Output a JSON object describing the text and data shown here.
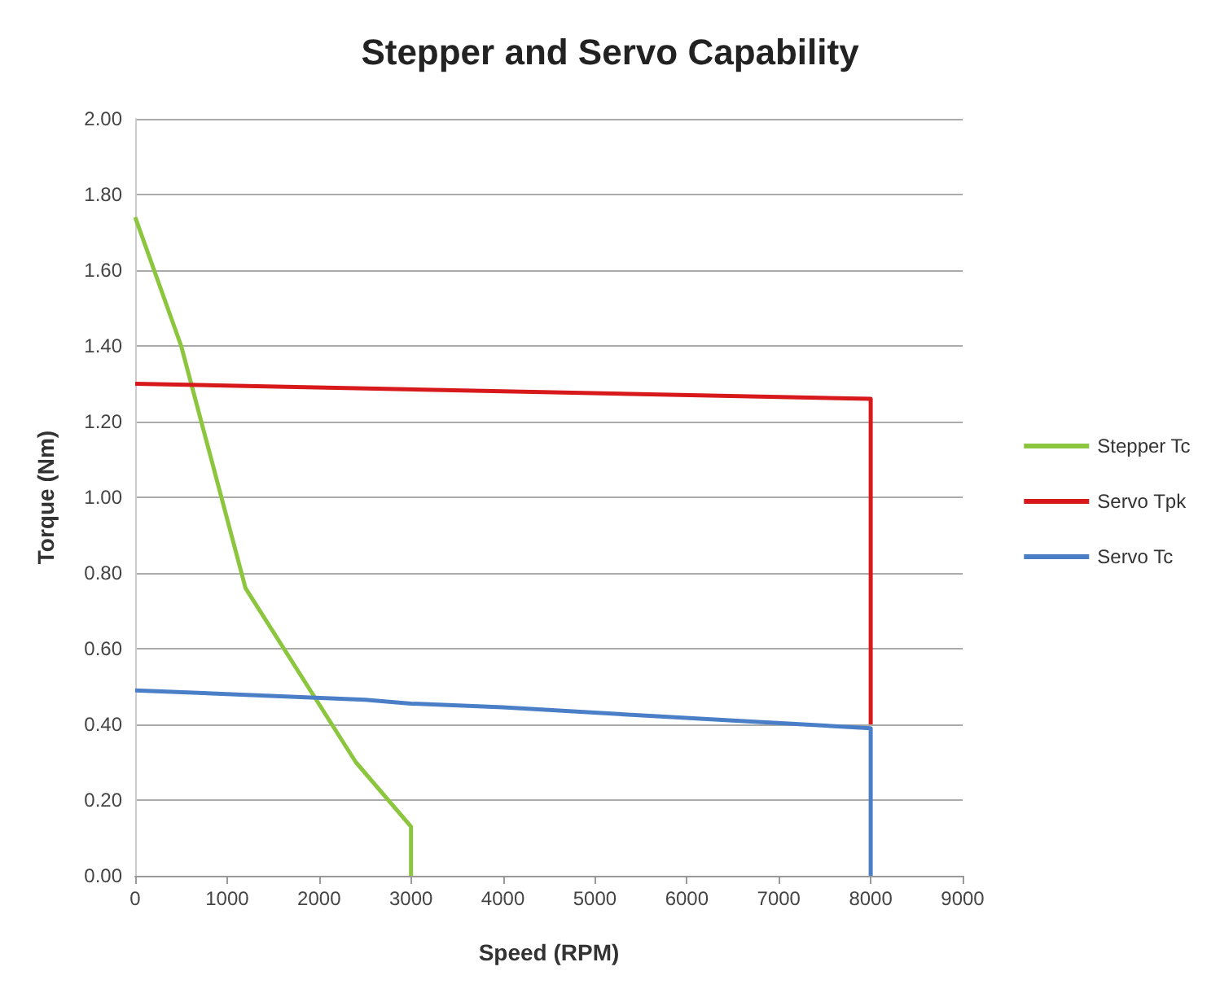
{
  "chart_data": {
    "type": "line",
    "title": "Stepper and Servo Capability",
    "xlabel": "Speed (RPM)",
    "ylabel": "Torque (Nm)",
    "xlim": [
      0,
      9000
    ],
    "xticks": [
      0,
      1000,
      2000,
      3000,
      4000,
      5000,
      6000,
      7000,
      8000,
      9000
    ],
    "ylim": [
      0,
      2
    ],
    "yticks": [
      {
        "value": 0,
        "label": "0.00"
      },
      {
        "value": 0.2,
        "label": "0.20"
      },
      {
        "value": 0.4,
        "label": "0.40"
      },
      {
        "value": 0.6,
        "label": "0.60"
      },
      {
        "value": 0.8,
        "label": "0.80"
      },
      {
        "value": 1,
        "label": "1.00"
      },
      {
        "value": 1.2,
        "label": "1.20"
      },
      {
        "value": 1.4,
        "label": "1.40"
      },
      {
        "value": 1.6,
        "label": "1.60"
      },
      {
        "value": 1.8,
        "label": "1.80"
      },
      {
        "value": 2,
        "label": "2.00"
      }
    ],
    "series": [
      {
        "name": "Stepper Tc",
        "color": "#8cc63f",
        "x": [
          0,
          500,
          1200,
          2400,
          3000,
          3000
        ],
        "values": [
          1.74,
          1.4,
          0.76,
          0.3,
          0.13,
          0
        ]
      },
      {
        "name": "Servo Tpk",
        "color": "#d7191c",
        "x": [
          0,
          8000,
          8000
        ],
        "values": [
          1.3,
          1.26,
          0.4
        ]
      },
      {
        "name": "Servo Tc",
        "color": "#4a7fc8",
        "x": [
          0,
          2500,
          3000,
          4000,
          6500,
          8000,
          8000
        ],
        "values": [
          0.49,
          0.465,
          0.455,
          0.445,
          0.41,
          0.39,
          0
        ]
      }
    ],
    "grid": "y",
    "legend": "right",
    "marker": "none",
    "line_style": "solid"
  }
}
